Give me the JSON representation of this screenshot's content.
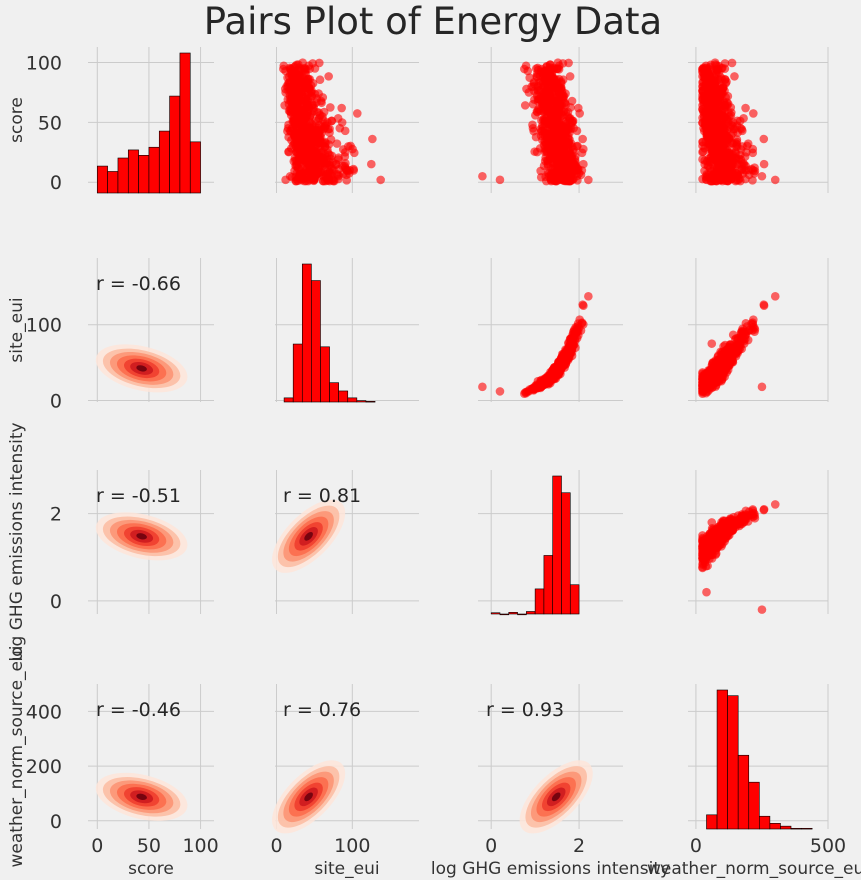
{
  "chart_data": {
    "type": "scatter",
    "title": "Pairs Plot of Energy Data",
    "variables": [
      "score",
      "site_eui",
      "log GHG emissions intensity",
      "weather_norm_source_eui"
    ],
    "axes": {
      "score": {
        "ticks": [
          0,
          50,
          100
        ],
        "range": [
          -9,
          113
        ]
      },
      "site_eui": {
        "ticks": [
          0,
          100
        ],
        "range": [
          -2,
          188
        ]
      },
      "log GHG emissions intensity": {
        "ticks": [
          0,
          2
        ],
        "range": [
          -0.3,
          3.0
        ]
      },
      "weather_norm_source_eui": {
        "ticks": [
          0,
          200,
          400
        ],
        "range": [
          -30,
          500
        ],
        "x_ticks": [
          0,
          500
        ]
      }
    },
    "correlations": [
      {
        "row": 1,
        "col": 0,
        "label": "r = -0.66",
        "value": -0.66
      },
      {
        "row": 2,
        "col": 0,
        "label": "r = -0.51",
        "value": -0.51
      },
      {
        "row": 2,
        "col": 1,
        "label": "r = 0.81",
        "value": 0.81
      },
      {
        "row": 3,
        "col": 0,
        "label": "r = -0.46",
        "value": -0.46
      },
      {
        "row": 3,
        "col": 1,
        "label": "r = 0.76",
        "value": 0.76
      },
      {
        "row": 3,
        "col": 2,
        "label": "r = 0.93",
        "value": 0.93
      }
    ],
    "histograms": {
      "score": {
        "edges": [
          0,
          10,
          20,
          30,
          40,
          50,
          60,
          70,
          80,
          90,
          100
        ],
        "counts": [
          10,
          8,
          13,
          16,
          14,
          17,
          23,
          36,
          52,
          19
        ]
      },
      "site_eui": {
        "edges": [
          10,
          22,
          34,
          46,
          58,
          70,
          82,
          94,
          106,
          118,
          130
        ],
        "counts": [
          3,
          42,
          100,
          88,
          40,
          14,
          8,
          3,
          1,
          0.5
        ]
      },
      "log GHG emissions intensity": {
        "edges": [
          0,
          0.2,
          0.4,
          0.6,
          0.8,
          1.0,
          1.2,
          1.4,
          1.6,
          1.8,
          2.0
        ],
        "counts": [
          0.3,
          0,
          0.4,
          0,
          0.6,
          6,
          14,
          33,
          29,
          7
        ]
      },
      "weather_norm_source_eui": {
        "edges": [
          40,
          80,
          120,
          160,
          200,
          240,
          280,
          320,
          360,
          400,
          440
        ],
        "counts": [
          10,
          98,
          94,
          52,
          33,
          9,
          4,
          2,
          0.5,
          0.5
        ]
      }
    },
    "scatter_color": "#ff0000",
    "kde_colormap": "Reds",
    "grid": true,
    "legend": "none"
  }
}
